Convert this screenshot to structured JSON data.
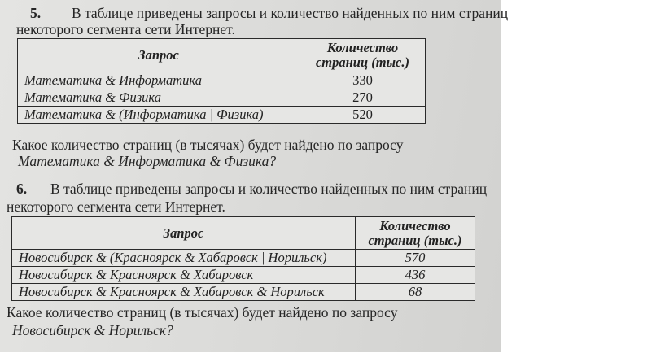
{
  "problems": [
    {
      "number": "5.",
      "intro_line1": "В таблице приведены запросы и количество найденных по ним страниц",
      "intro_line2": "некоторого сегмента сети Интернет.",
      "table": {
        "headers": [
          "Запрос",
          "Количество",
          "страниц (тыс.)"
        ],
        "rows": [
          {
            "query": "Математика & Информатика",
            "count": "330"
          },
          {
            "query": "Математика & Физика",
            "count": "270"
          },
          {
            "query": "Математика & (Информатика | Физика)",
            "count": "520"
          }
        ]
      },
      "question": "Какое количество страниц (в тысячах) будет найдено по запросу",
      "question_query": "Математика & Информатика & Физика?"
    },
    {
      "number": "6.",
      "intro_line1": "В таблице приведены запросы и количество найденных по ним страниц",
      "intro_line2": "некоторого сегмента сети Интернет.",
      "table": {
        "headers": [
          "Запрос",
          "Количество",
          "страниц (тыс.)"
        ],
        "rows": [
          {
            "query": "Новосибирск & (Красноярск & Хабаровск | Норильск)",
            "count": "570"
          },
          {
            "query": "Новосибирск & Красноярск & Хабаровск",
            "count": "436"
          },
          {
            "query": "Новосибирск & Красноярск & Хабаровск & Норильск",
            "count": "68"
          }
        ]
      },
      "question": "Какое количество страниц (в тысячах) будет найдено по запросу",
      "question_query": "Новосибирск & Норильск?"
    }
  ]
}
